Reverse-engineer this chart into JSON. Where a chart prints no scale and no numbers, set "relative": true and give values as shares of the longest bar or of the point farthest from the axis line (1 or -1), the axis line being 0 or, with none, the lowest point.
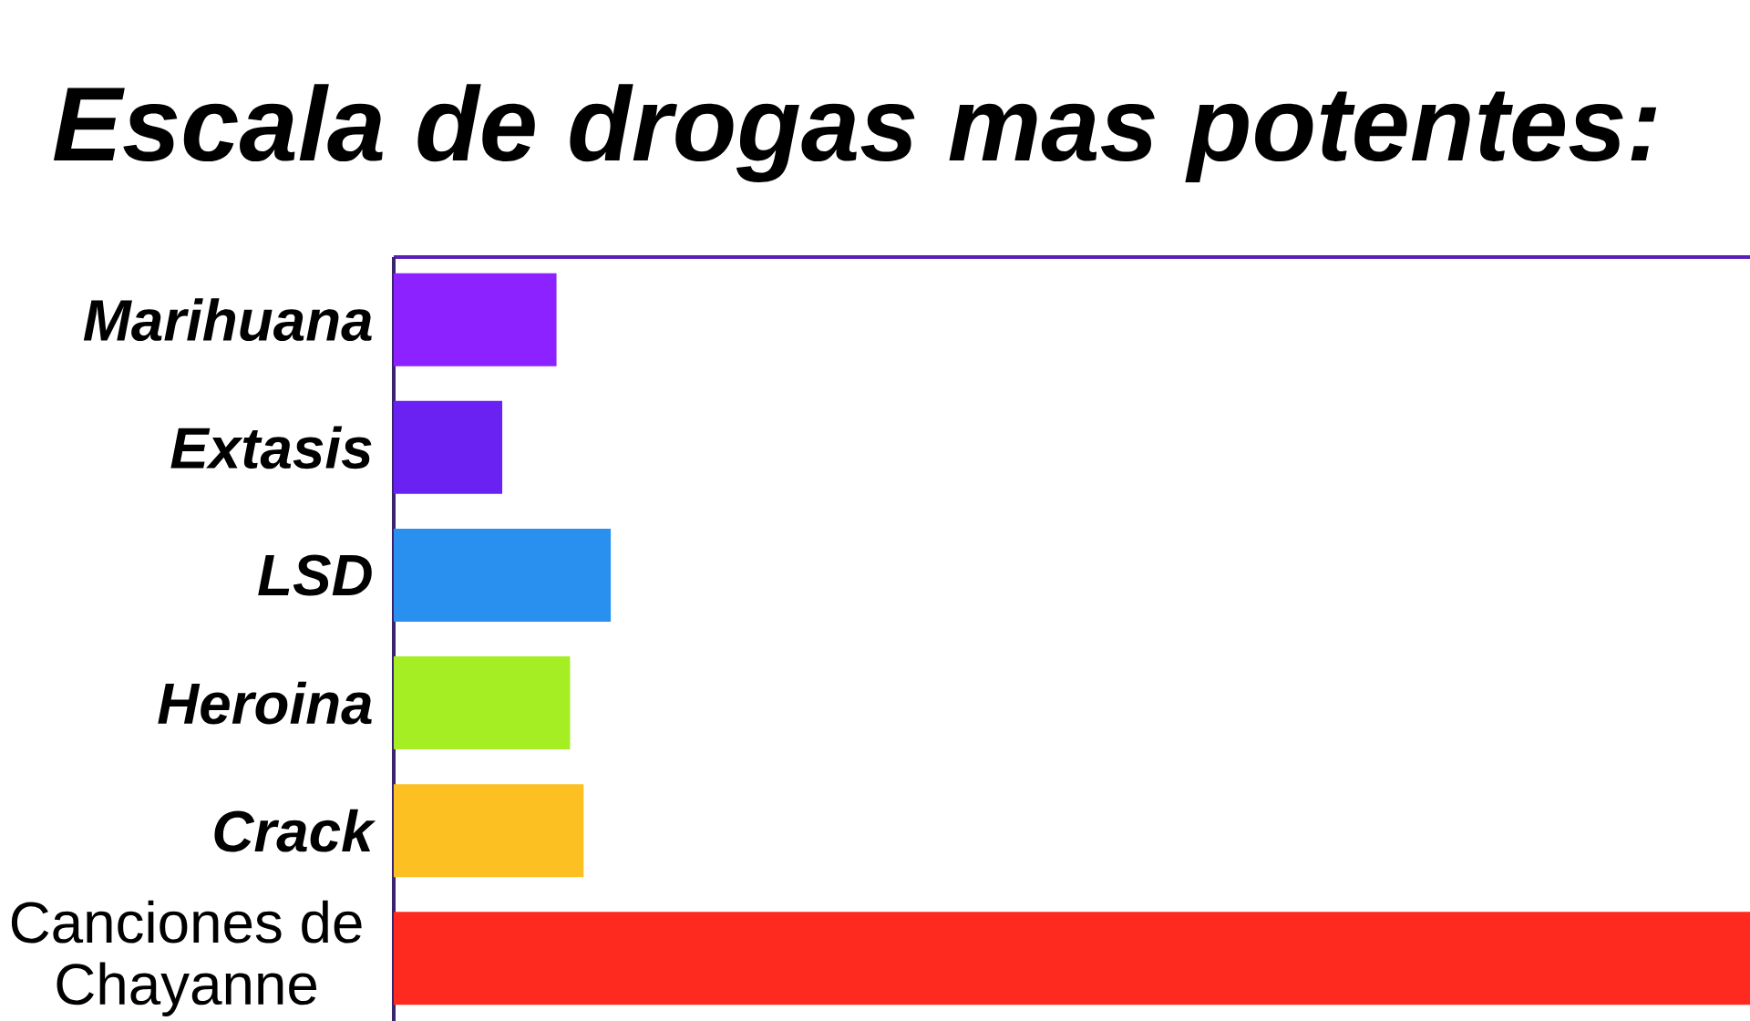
{
  "chart_data": {
    "type": "bar",
    "orientation": "horizontal",
    "relative": true,
    "title": "Escala de drogas mas potentes:",
    "categories": [
      "Marihuana",
      "Extasis",
      "LSD",
      "Heroina",
      "Crack",
      "Canciones de Chayanne"
    ],
    "values": [
      0.12,
      0.08,
      0.16,
      0.13,
      0.14,
      1
    ],
    "colors": [
      "#8b22ff",
      "#6a22f2",
      "#2a90f0",
      "#a6ee24",
      "#fcc022",
      "#ff2a1f"
    ]
  }
}
